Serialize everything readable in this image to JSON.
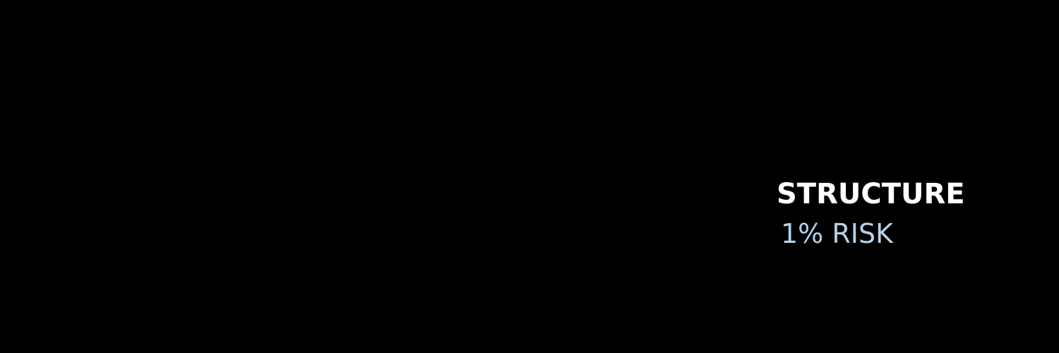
{
  "banner": {
    "headline": "STRUCTURE",
    "subline": "1% RISK"
  }
}
